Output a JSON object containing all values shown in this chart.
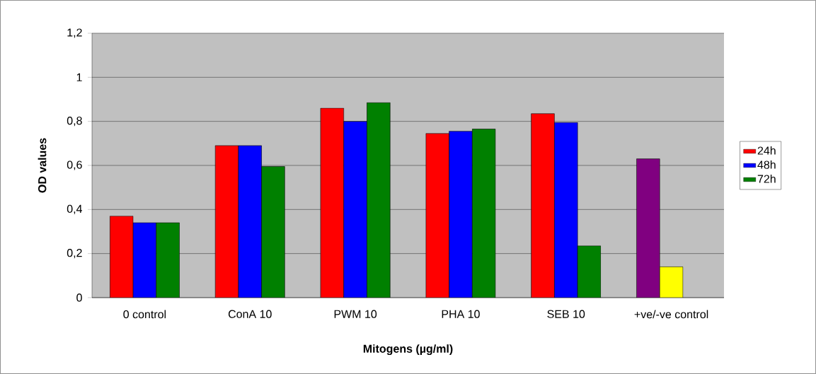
{
  "chart_data": {
    "type": "bar",
    "xlabel": "Mitogens (µg/ml)",
    "ylabel": "OD values",
    "categories": [
      "0 control",
      "ConA 10",
      "PWM 10",
      "PHA 10",
      "SEB 10",
      "+ve/-ve control"
    ],
    "series": [
      {
        "name": "24h",
        "color": "#ff0000",
        "colors": [
          "#ff0000",
          "#ff0000",
          "#ff0000",
          "#ff0000",
          "#ff0000",
          "#800080"
        ],
        "values": [
          0.37,
          0.69,
          0.86,
          0.745,
          0.835,
          0.63
        ]
      },
      {
        "name": "48h",
        "color": "#0000ff",
        "colors": [
          "#0000ff",
          "#0000ff",
          "#0000ff",
          "#0000ff",
          "#0000ff",
          "#ffff00"
        ],
        "values": [
          0.34,
          0.69,
          0.8,
          0.755,
          0.795,
          0.14
        ]
      },
      {
        "name": "72h",
        "color": "#008000",
        "values": [
          0.34,
          0.595,
          0.885,
          0.765,
          0.235,
          null
        ]
      }
    ],
    "ylim": [
      0,
      1.2
    ],
    "yticks": [
      0,
      {
        "value": 0.2,
        "label": "0,2"
      },
      {
        "value": 0.4,
        "label": "0,4"
      },
      {
        "value": 0.6,
        "label": "0,6"
      },
      {
        "value": 0.8,
        "label": "0,8"
      },
      1,
      {
        "value": 1.2,
        "label": "1,2"
      }
    ],
    "grid": "y",
    "legend": "right"
  }
}
